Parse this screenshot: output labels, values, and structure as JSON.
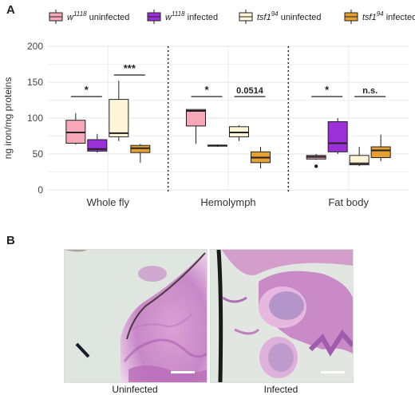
{
  "panel_a_label": "A",
  "panel_b_label": "B",
  "legend": [
    {
      "genotype": "w",
      "sup": "1118",
      "condition": " uninfected",
      "fill": "#F6A7B8",
      "italic": true
    },
    {
      "genotype": "w",
      "sup": "1118",
      "condition": " infected",
      "fill": "#9B2FD8",
      "italic": true
    },
    {
      "genotype": "tsf1",
      "sup": "94",
      "condition": " uninfected",
      "fill": "#FFF6D9",
      "italic": true
    },
    {
      "genotype": "tsf1",
      "sup": "94",
      "condition": " infected",
      "fill": "#E6A030",
      "italic": true
    }
  ],
  "chart_data": {
    "type": "box",
    "ylabel": "ng iron/mg proteins",
    "ylim": [
      0,
      200
    ],
    "yticks": [
      0,
      50,
      100,
      150,
      200
    ],
    "groups": [
      "Whole fly",
      "Hemolymph",
      "Fat body"
    ],
    "series_order": [
      "w1118 uninfected",
      "w1118 infected",
      "tsf1 94 uninfected",
      "tsf1 94 infected"
    ],
    "boxes": [
      {
        "group": "Whole fly",
        "series": 0,
        "min": 63,
        "q1": 65,
        "median": 80,
        "q3": 97,
        "max": 107,
        "outliers": []
      },
      {
        "group": "Whole fly",
        "series": 1,
        "min": 52,
        "q1": 54,
        "median": 57,
        "q3": 70,
        "max": 78,
        "outliers": []
      },
      {
        "group": "Whole fly",
        "series": 2,
        "min": 68,
        "q1": 74,
        "median": 79,
        "q3": 126,
        "max": 152,
        "outliers": []
      },
      {
        "group": "Whole fly",
        "series": 3,
        "min": 38,
        "q1": 52,
        "median": 58,
        "q3": 62,
        "max": 64,
        "outliers": []
      },
      {
        "group": "Hemolymph",
        "series": 0,
        "min": 64,
        "q1": 89,
        "median": 110,
        "q3": 112,
        "max": 112,
        "outliers": []
      },
      {
        "group": "Hemolymph",
        "series": 1,
        "min": 60,
        "q1": 61,
        "median": 62,
        "q3": 62,
        "max": 63,
        "outliers": []
      },
      {
        "group": "Hemolymph",
        "series": 2,
        "min": 68,
        "q1": 74,
        "median": 80,
        "q3": 88,
        "max": 90,
        "outliers": []
      },
      {
        "group": "Hemolymph",
        "series": 3,
        "min": 30,
        "q1": 38,
        "median": 45,
        "q3": 53,
        "max": 60,
        "outliers": []
      },
      {
        "group": "Fat body",
        "series": 0,
        "min": 42,
        "q1": 43,
        "median": 46,
        "q3": 48,
        "max": 50,
        "outliers": [
          33
        ]
      },
      {
        "group": "Fat body",
        "series": 1,
        "min": 50,
        "q1": 53,
        "median": 65,
        "q3": 95,
        "max": 100,
        "outliers": []
      },
      {
        "group": "Fat body",
        "series": 2,
        "min": 33,
        "q1": 35,
        "median": 37,
        "q3": 48,
        "max": 60,
        "outliers": []
      },
      {
        "group": "Fat body",
        "series": 3,
        "min": 40,
        "q1": 45,
        "median": 55,
        "q3": 60,
        "max": 77,
        "outliers": []
      }
    ],
    "annotations": [
      {
        "group": "Whole fly",
        "from_series": 0,
        "to_series": 1,
        "label": "*",
        "y": 130
      },
      {
        "group": "Whole fly",
        "from_series": 2,
        "to_series": 3,
        "label": "***",
        "y": 160
      },
      {
        "group": "Hemolymph",
        "from_series": 0,
        "to_series": 1,
        "label": "*",
        "y": 130
      },
      {
        "group": "Hemolymph",
        "from_series": 2,
        "to_series": 3,
        "label": "0.0514",
        "y": 130
      },
      {
        "group": "Fat body",
        "from_series": 0,
        "to_series": 1,
        "label": "*",
        "y": 130
      },
      {
        "group": "Fat body",
        "from_series": 2,
        "to_series": 3,
        "label": "n.s.",
        "y": 130
      }
    ],
    "grid": true
  },
  "micrographs": [
    {
      "caption": "Uninfected"
    },
    {
      "caption": "Infected"
    }
  ]
}
